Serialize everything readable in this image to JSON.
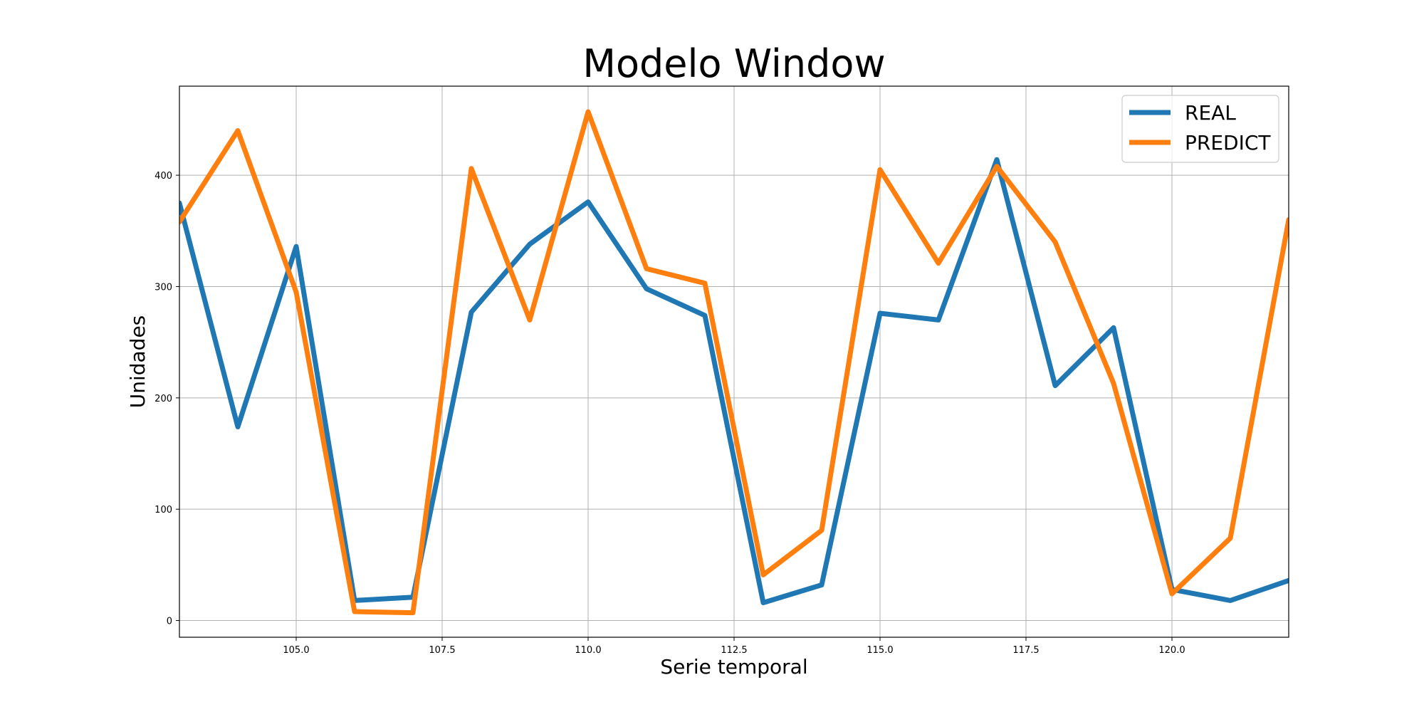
{
  "chart_data": {
    "type": "line",
    "title": "Modelo Window",
    "xlabel": "Serie temporal",
    "ylabel": "Unidades",
    "xlim": [
      103,
      122
    ],
    "ylim": [
      -15,
      480
    ],
    "xticks": [
      105.0,
      107.5,
      110.0,
      112.5,
      115.0,
      117.5,
      120.0
    ],
    "xtick_labels": [
      "105.0",
      "107.5",
      "110.0",
      "112.5",
      "115.0",
      "117.5",
      "120.0"
    ],
    "yticks": [
      0,
      100,
      200,
      300,
      400
    ],
    "ytick_labels": [
      "0",
      "100",
      "200",
      "300",
      "400"
    ],
    "grid": true,
    "legend_position": "top-right",
    "x": [
      103,
      104,
      105,
      106,
      107,
      108,
      109,
      110,
      111,
      112,
      113,
      114,
      115,
      116,
      117,
      118,
      119,
      120,
      121,
      122
    ],
    "series": [
      {
        "name": "REAL",
        "color": "#1f77b4",
        "values": [
          375,
          174,
          336,
          18,
          21,
          277,
          338,
          376,
          298,
          274,
          16,
          32,
          276,
          270,
          414,
          211,
          263,
          28,
          18,
          36
        ]
      },
      {
        "name": "PREDICT",
        "color": "#ff7f0e",
        "values": [
          358,
          440,
          295,
          8,
          7,
          406,
          270,
          457,
          316,
          303,
          41,
          81,
          405,
          321,
          408,
          340,
          213,
          24,
          74,
          360
        ]
      }
    ]
  }
}
